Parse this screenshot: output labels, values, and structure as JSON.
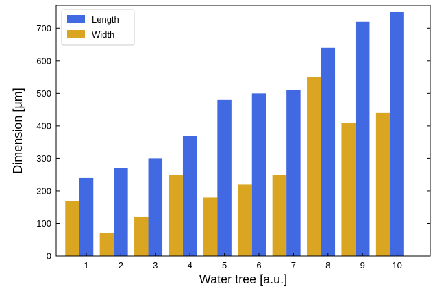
{
  "chart_data": {
    "type": "bar",
    "title": "",
    "xlabel": "Water tree [a.u.]",
    "ylabel": "Dimension [μm]",
    "categories": [
      "1",
      "2",
      "3",
      "4",
      "5",
      "6",
      "7",
      "8",
      "9",
      "10"
    ],
    "series": [
      {
        "name": "Length",
        "color": "#4169e1",
        "values": [
          240,
          270,
          300,
          370,
          480,
          500,
          510,
          640,
          720,
          750
        ]
      },
      {
        "name": "Width",
        "color": "#daa520",
        "values": [
          170,
          70,
          120,
          250,
          180,
          220,
          250,
          550,
          410,
          440
        ]
      }
    ],
    "ylim": [
      0,
      770
    ],
    "yticks": [
      "0",
      "100",
      "200",
      "300",
      "400",
      "500",
      "600",
      "700"
    ],
    "grid": false,
    "legend_position": "top-left"
  }
}
